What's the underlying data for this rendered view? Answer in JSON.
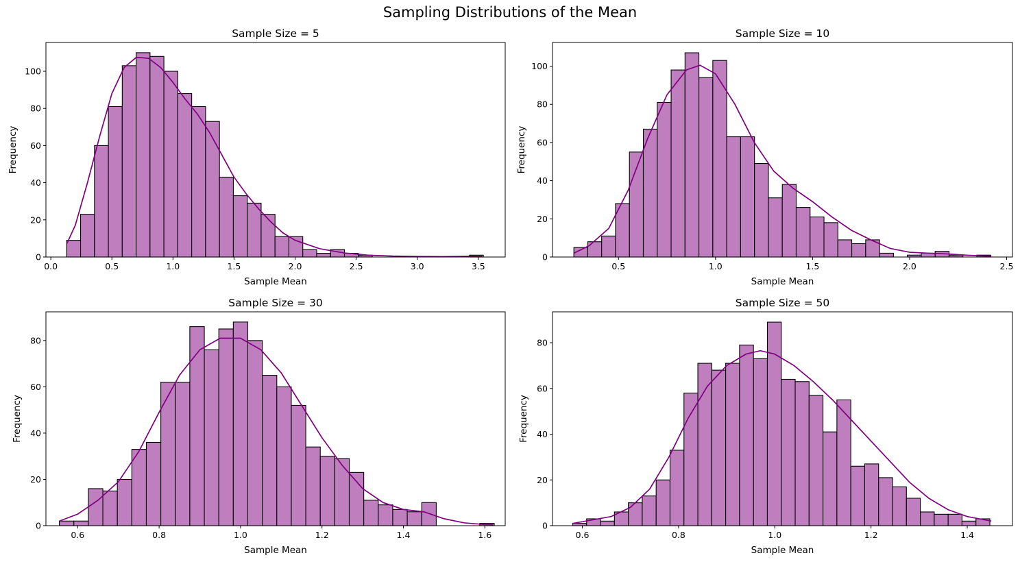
{
  "figure": {
    "title": "Sampling Distributions of the Mean"
  },
  "colors": {
    "bar_fill": "#bf7fbf",
    "bar_edge": "#000000",
    "kde_line": "#800080"
  },
  "chart_data": [
    {
      "type": "bar",
      "title": "Sample Size = 5",
      "xlabel": "Sample Mean",
      "ylabel": "Frequency",
      "xlim": [
        -0.04,
        3.72
      ],
      "ylim": [
        0,
        115.5
      ],
      "xticks": [
        0.0,
        0.5,
        1.0,
        1.5,
        2.0,
        2.5,
        3.0,
        3.5
      ],
      "xtick_labels": [
        "0.0",
        "0.5",
        "1.0",
        "1.5",
        "2.0",
        "2.5",
        "3.0",
        "3.5"
      ],
      "yticks": [
        0,
        20,
        40,
        60,
        80,
        100
      ],
      "ytick_labels": [
        "0",
        "20",
        "40",
        "60",
        "80",
        "100"
      ],
      "bins": {
        "start": 0.13,
        "width": 0.1137,
        "count": 30
      },
      "values": [
        9,
        23,
        60,
        81,
        103,
        110,
        108,
        100,
        88,
        81,
        73,
        43,
        33,
        29,
        23,
        11,
        11,
        4,
        2,
        4,
        2,
        1,
        0,
        0,
        0,
        0,
        0,
        0,
        0,
        1
      ],
      "kde": {
        "x": [
          0.13,
          0.2,
          0.3,
          0.4,
          0.5,
          0.6,
          0.7,
          0.8,
          0.9,
          1.0,
          1.1,
          1.2,
          1.3,
          1.4,
          1.5,
          1.6,
          1.7,
          1.8,
          1.9,
          2.0,
          2.2,
          2.4,
          2.6,
          2.8,
          3.0,
          3.2,
          3.4,
          3.53
        ],
        "y": [
          7,
          17,
          40,
          65,
          88,
          102,
          107.5,
          107,
          102,
          94,
          85,
          77,
          67,
          55,
          43,
          34,
          26,
          19,
          13,
          9,
          4.5,
          2.2,
          1,
          0.5,
          0.3,
          0.2,
          0.4,
          0.3
        ]
      }
    },
    {
      "type": "bar",
      "title": "Sample Size = 10",
      "xlabel": "Sample Mean",
      "ylabel": "Frequency",
      "xlim": [
        0.16,
        2.53
      ],
      "ylim": [
        0,
        112.4
      ],
      "xticks": [
        0.5,
        1.0,
        1.5,
        2.0,
        2.5
      ],
      "xtick_labels": [
        "0.5",
        "1.0",
        "1.5",
        "2.0",
        "2.5"
      ],
      "yticks": [
        0,
        20,
        40,
        60,
        80,
        100
      ],
      "ytick_labels": [
        "0",
        "20",
        "40",
        "60",
        "80",
        "100"
      ],
      "bins": {
        "start": 0.27,
        "width": 0.0716,
        "count": 30
      },
      "values": [
        5,
        8,
        11,
        28,
        55,
        67,
        81,
        98,
        107,
        94,
        103,
        63,
        63,
        49,
        31,
        38,
        26,
        21,
        18,
        9,
        7,
        9,
        2,
        0,
        1,
        2,
        3,
        1,
        0,
        1
      ],
      "kde": {
        "x": [
          0.27,
          0.35,
          0.45,
          0.55,
          0.65,
          0.75,
          0.85,
          0.92,
          1.0,
          1.1,
          1.2,
          1.3,
          1.4,
          1.5,
          1.6,
          1.7,
          1.8,
          1.9,
          2.0,
          2.1,
          2.2,
          2.3,
          2.42
        ],
        "y": [
          2,
          6,
          15,
          35,
          62,
          85,
          98,
          100.5,
          96,
          80,
          60,
          45,
          36,
          29,
          21,
          14,
          9,
          4.5,
          2.5,
          2,
          1.6,
          0.9,
          0.4
        ]
      }
    },
    {
      "type": "bar",
      "title": "Sample Size = 30",
      "xlabel": "Sample Mean",
      "ylabel": "Frequency",
      "xlim": [
        0.522,
        1.65
      ],
      "ylim": [
        0,
        92.4
      ],
      "xticks": [
        0.6,
        0.8,
        1.0,
        1.2,
        1.4,
        1.6
      ],
      "xtick_labels": [
        "0.6",
        "0.8",
        "1.0",
        "1.2",
        "1.4",
        "1.6"
      ],
      "yticks": [
        0,
        20,
        40,
        60,
        80
      ],
      "ytick_labels": [
        "0",
        "20",
        "40",
        "60",
        "80"
      ],
      "bins": {
        "start": 0.555,
        "width": 0.0356,
        "count": 30
      },
      "values": [
        2,
        2,
        16,
        15,
        20,
        33,
        36,
        62,
        62,
        86,
        76,
        85,
        88,
        80,
        65,
        60,
        52,
        34,
        30,
        29,
        23,
        11,
        9,
        7,
        6,
        10,
        0,
        0,
        0,
        1
      ],
      "kde": {
        "x": [
          0.555,
          0.6,
          0.65,
          0.7,
          0.75,
          0.8,
          0.85,
          0.9,
          0.95,
          1.0,
          1.05,
          1.1,
          1.15,
          1.2,
          1.25,
          1.3,
          1.35,
          1.4,
          1.45,
          1.5,
          1.55,
          1.6,
          1.62
        ],
        "y": [
          2,
          5,
          11,
          19,
          32,
          49,
          65,
          76,
          81,
          81,
          76,
          66,
          52,
          38,
          26,
          16,
          10,
          7,
          6,
          3,
          1.2,
          0.5,
          0.4
        ]
      }
    },
    {
      "type": "bar",
      "title": "Sample Size = 50",
      "xlabel": "Sample Mean",
      "ylabel": "Frequency",
      "xlim": [
        0.538,
        1.494
      ],
      "ylim": [
        0,
        93.5
      ],
      "xticks": [
        0.6,
        0.8,
        1.0,
        1.2,
        1.4
      ],
      "xtick_labels": [
        "0.6",
        "0.8",
        "1.0",
        "1.2",
        "1.4"
      ],
      "yticks": [
        0,
        20,
        40,
        60,
        80
      ],
      "ytick_labels": [
        "0",
        "20",
        "40",
        "60",
        "80"
      ],
      "bins": {
        "start": 0.58,
        "width": 0.0289,
        "count": 30
      },
      "values": [
        1,
        3,
        2,
        6,
        10,
        13,
        20,
        33,
        58,
        71,
        68,
        71,
        79,
        73,
        89,
        64,
        63,
        57,
        41,
        55,
        26,
        27,
        21,
        17,
        12,
        6,
        5,
        5,
        2,
        3
      ],
      "kde": {
        "x": [
          0.58,
          0.62,
          0.66,
          0.7,
          0.74,
          0.78,
          0.82,
          0.86,
          0.9,
          0.94,
          0.97,
          1.0,
          1.04,
          1.08,
          1.12,
          1.16,
          1.2,
          1.24,
          1.28,
          1.32,
          1.36,
          1.4,
          1.45
        ],
        "y": [
          1,
          2.5,
          4,
          8,
          16,
          30,
          47,
          61,
          70,
          75,
          76.5,
          75,
          70,
          63,
          55,
          46,
          37,
          28,
          19,
          12,
          7,
          4,
          2
        ]
      }
    }
  ]
}
